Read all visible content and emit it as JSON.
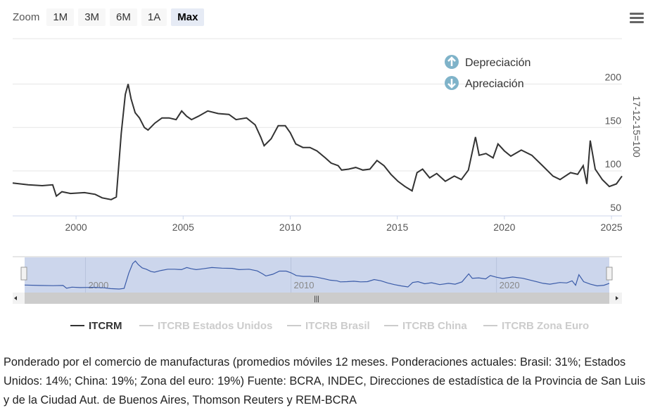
{
  "toolbar": {
    "zoom_label": "Zoom",
    "buttons": [
      "1M",
      "3M",
      "6M",
      "1A",
      "Max"
    ],
    "active": "Max"
  },
  "annotations": {
    "up": "Depreciación",
    "down": "Apreciación"
  },
  "chart_data": {
    "type": "line",
    "title": "",
    "ylabel": "17-12-15=100",
    "xlabel": "",
    "ylim": [
      50,
      200
    ],
    "xlim": [
      1997.04,
      2025.49
    ],
    "yticks": [
      50,
      100,
      150,
      200
    ],
    "xticks": [
      2000,
      2005,
      2010,
      2015,
      2020,
      2025
    ],
    "navigator_ticks": [
      2000,
      2010,
      2020
    ],
    "grid": true,
    "legend_position": "bottom",
    "legend": [
      {
        "name": "ITCRM",
        "visible": true
      },
      {
        "name": "ITCRB Estados Unidos",
        "visible": false
      },
      {
        "name": "ITCRB Brasil",
        "visible": false
      },
      {
        "name": "ITCRB China",
        "visible": false
      },
      {
        "name": "ITCRB Zona Euro",
        "visible": false
      }
    ],
    "series": [
      {
        "name": "ITCRM",
        "color": "#333333",
        "x": [
          1997.04,
          1997.76,
          1998.42,
          1998.91,
          1999.08,
          1999.34,
          1999.74,
          2000.39,
          2000.89,
          2001.22,
          2001.64,
          2001.88,
          2002.11,
          2002.3,
          2002.43,
          2002.57,
          2002.76,
          2002.96,
          2003.19,
          2003.36,
          2003.68,
          2004.01,
          2004.34,
          2004.67,
          2004.93,
          2005.16,
          2005.39,
          2005.72,
          2006.15,
          2006.64,
          2007.14,
          2007.47,
          2007.96,
          2008.36,
          2008.62,
          2008.78,
          2009.11,
          2009.44,
          2009.77,
          2010.0,
          2010.26,
          2010.59,
          2010.92,
          2011.25,
          2011.64,
          2011.91,
          2012.24,
          2012.4,
          2012.73,
          2013.06,
          2013.39,
          2013.72,
          2014.05,
          2014.38,
          2014.7,
          2015.03,
          2015.36,
          2015.69,
          2015.92,
          2016.18,
          2016.51,
          2016.84,
          2017.24,
          2017.66,
          2017.99,
          2018.32,
          2018.65,
          2018.82,
          2019.14,
          2019.47,
          2019.7,
          2020.0,
          2020.3,
          2020.79,
          2021.28,
          2021.78,
          2022.27,
          2022.6,
          2023.09,
          2023.42,
          2023.68,
          2023.85,
          2024.01,
          2024.24,
          2024.57,
          2024.9,
          2025.23,
          2025.49
        ],
        "y": [
          86,
          84,
          83,
          84,
          71,
          76,
          74,
          75,
          73,
          69,
          67,
          70,
          143,
          188,
          200,
          183,
          167,
          161,
          150,
          147,
          155,
          161,
          161,
          159,
          169,
          163,
          159,
          163,
          169,
          166,
          165,
          159,
          161,
          153,
          139,
          129,
          137,
          152,
          152,
          144,
          131,
          127,
          127,
          123,
          115,
          109,
          106,
          101,
          102,
          104,
          101,
          102,
          112,
          106,
          96,
          88,
          82,
          77,
          98,
          102,
          92,
          97,
          88,
          94,
          90,
          101,
          139,
          118,
          120,
          115,
          131,
          123,
          117,
          124,
          118,
          106,
          94,
          90,
          98,
          96,
          106,
          85,
          135,
          102,
          90,
          82,
          85,
          94
        ]
      }
    ]
  },
  "caption": "Ponderado por el comercio de manufacturas (promedios móviles 12 meses. Ponderaciones actuales: Brasil: 31%; Estados Unidos: 14%; China: 19%; Zona del euro: 19%) Fuente: BCRA, INDEC, Direcciones de estadística de la Provincia de San Luis y de la Ciudad Aut. de Buenos Aires, Thomson Reuters y REM-BCRA"
}
